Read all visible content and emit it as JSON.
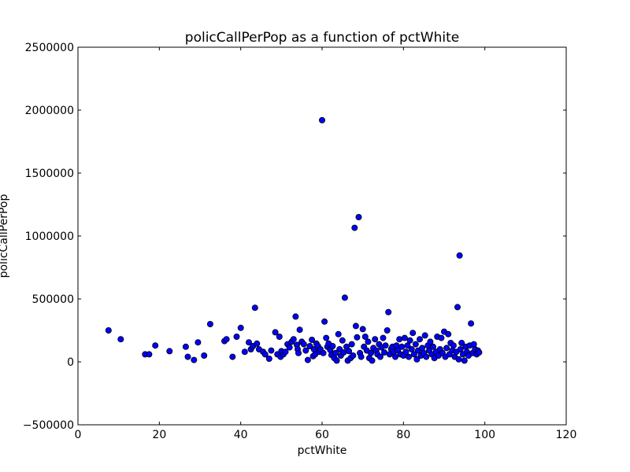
{
  "chart_data": {
    "type": "scatter",
    "title": "policCallPerPop as a function of pctWhite",
    "xlabel": "pctWhite",
    "ylabel": "policCallPerPop",
    "xlim": [
      0,
      120
    ],
    "ylim": [
      -500000,
      2500000
    ],
    "xticks": [
      0,
      20,
      40,
      60,
      80,
      100,
      120
    ],
    "yticks": [
      -500000,
      0,
      500000,
      1000000,
      1500000,
      2000000,
      2500000
    ],
    "grid": false,
    "marker_color": "#0000ff",
    "marker_edge_color": "#000000",
    "points": [
      [
        7.5,
        250000
      ],
      [
        10.5,
        180000
      ],
      [
        16.5,
        60000
      ],
      [
        17.5,
        60000
      ],
      [
        19,
        130000
      ],
      [
        22.5,
        85000
      ],
      [
        26.5,
        120000
      ],
      [
        27,
        40000
      ],
      [
        28.5,
        15000
      ],
      [
        29.5,
        155000
      ],
      [
        31,
        50000
      ],
      [
        32.5,
        300000
      ],
      [
        36,
        165000
      ],
      [
        36.5,
        180000
      ],
      [
        38,
        40000
      ],
      [
        39,
        200000
      ],
      [
        40,
        270000
      ],
      [
        41,
        80000
      ],
      [
        42,
        155000
      ],
      [
        42.5,
        100000
      ],
      [
        43,
        125000
      ],
      [
        43.5,
        430000
      ],
      [
        44,
        145000
      ],
      [
        44.5,
        100000
      ],
      [
        45.5,
        80000
      ],
      [
        46,
        60000
      ],
      [
        47,
        25000
      ],
      [
        47.5,
        90000
      ],
      [
        48.5,
        235000
      ],
      [
        49,
        60000
      ],
      [
        49.5,
        200000
      ],
      [
        49.8,
        40000
      ],
      [
        50,
        85000
      ],
      [
        50.5,
        60000
      ],
      [
        51,
        80000
      ],
      [
        51.5,
        140000
      ],
      [
        52,
        115000
      ],
      [
        52.5,
        160000
      ],
      [
        53,
        180000
      ],
      [
        53.5,
        360000
      ],
      [
        53.8,
        135000
      ],
      [
        54,
        100000
      ],
      [
        54.2,
        70000
      ],
      [
        54.5,
        255000
      ],
      [
        55,
        160000
      ],
      [
        55.5,
        140000
      ],
      [
        56,
        90000
      ],
      [
        56.5,
        15000
      ],
      [
        57,
        125000
      ],
      [
        57.5,
        175000
      ],
      [
        57.8,
        45000
      ],
      [
        58,
        100000
      ],
      [
        58.3,
        60000
      ],
      [
        58.6,
        145000
      ],
      [
        59,
        125000
      ],
      [
        59.3,
        80000
      ],
      [
        59.6,
        100000
      ],
      [
        60,
        1920000
      ],
      [
        60.3,
        70000
      ],
      [
        60.6,
        320000
      ],
      [
        61,
        190000
      ],
      [
        61.3,
        120000
      ],
      [
        61.6,
        145000
      ],
      [
        62,
        95000
      ],
      [
        62.3,
        55000
      ],
      [
        62.6,
        125000
      ],
      [
        63,
        30000
      ],
      [
        63.3,
        70000
      ],
      [
        63.6,
        10000
      ],
      [
        64,
        220000
      ],
      [
        64.3,
        100000
      ],
      [
        64.6,
        50000
      ],
      [
        65,
        170000
      ],
      [
        65.3,
        75000
      ],
      [
        65.6,
        510000
      ],
      [
        66,
        120000
      ],
      [
        66.3,
        10000
      ],
      [
        66.6,
        85000
      ],
      [
        67,
        30000
      ],
      [
        67.3,
        140000
      ],
      [
        67.6,
        50000
      ],
      [
        68,
        1065000
      ],
      [
        68.3,
        285000
      ],
      [
        68.6,
        195000
      ],
      [
        69,
        1150000
      ],
      [
        69.3,
        70000
      ],
      [
        69.6,
        40000
      ],
      [
        70,
        260000
      ],
      [
        70.3,
        120000
      ],
      [
        70.6,
        200000
      ],
      [
        71,
        90000
      ],
      [
        71.3,
        160000
      ],
      [
        71.6,
        30000
      ],
      [
        72,
        70000
      ],
      [
        72.3,
        10000
      ],
      [
        72.6,
        110000
      ],
      [
        73,
        180000
      ],
      [
        73.3,
        90000
      ],
      [
        73.6,
        60000
      ],
      [
        74,
        140000
      ],
      [
        74.3,
        40000
      ],
      [
        74.6,
        115000
      ],
      [
        75,
        190000
      ],
      [
        75.3,
        75000
      ],
      [
        75.6,
        130000
      ],
      [
        76,
        250000
      ],
      [
        76.3,
        395000
      ],
      [
        76.6,
        60000
      ],
      [
        77,
        100000
      ],
      [
        77.3,
        120000
      ],
      [
        77.6,
        80000
      ],
      [
        78,
        40000
      ],
      [
        78.3,
        130000
      ],
      [
        78.6,
        90000
      ],
      [
        79,
        180000
      ],
      [
        79.3,
        60000
      ],
      [
        79.6,
        120000
      ],
      [
        80,
        50000
      ],
      [
        80.3,
        190000
      ],
      [
        80.6,
        80000
      ],
      [
        81,
        130000
      ],
      [
        81.3,
        40000
      ],
      [
        81.6,
        170000
      ],
      [
        82,
        100000
      ],
      [
        82.3,
        230000
      ],
      [
        82.6,
        60000
      ],
      [
        83,
        140000
      ],
      [
        83.3,
        20000
      ],
      [
        83.6,
        90000
      ],
      [
        84,
        180000
      ],
      [
        84.3,
        50000
      ],
      [
        84.6,
        110000
      ],
      [
        85,
        70000
      ],
      [
        85.3,
        210000
      ],
      [
        85.6,
        40000
      ],
      [
        86,
        130000
      ],
      [
        86.3,
        90000
      ],
      [
        86.6,
        160000
      ],
      [
        87,
        60000
      ],
      [
        87.3,
        120000
      ],
      [
        87.6,
        30000
      ],
      [
        88,
        80000
      ],
      [
        88.3,
        200000
      ],
      [
        88.6,
        50000
      ],
      [
        89,
        100000
      ],
      [
        89.3,
        190000
      ],
      [
        89.6,
        70000
      ],
      [
        90,
        240000
      ],
      [
        90.3,
        40000
      ],
      [
        90.6,
        110000
      ],
      [
        91,
        220000
      ],
      [
        91.3,
        60000
      ],
      [
        91.6,
        150000
      ],
      [
        92,
        90000
      ],
      [
        92.3,
        130000
      ],
      [
        92.6,
        40000
      ],
      [
        93,
        80000
      ],
      [
        93.3,
        435000
      ],
      [
        93.6,
        20000
      ],
      [
        93.8,
        845000
      ],
      [
        94,
        100000
      ],
      [
        94.3,
        150000
      ],
      [
        94.6,
        60000
      ],
      [
        95,
        10000
      ],
      [
        95.3,
        120000
      ],
      [
        95.6,
        80000
      ],
      [
        96,
        50000
      ],
      [
        96.3,
        130000
      ],
      [
        96.6,
        305000
      ],
      [
        97,
        70000
      ],
      [
        97.3,
        140000
      ],
      [
        97.6,
        100000
      ],
      [
        98,
        60000
      ],
      [
        98.3,
        90000
      ],
      [
        98.6,
        75000
      ]
    ]
  }
}
